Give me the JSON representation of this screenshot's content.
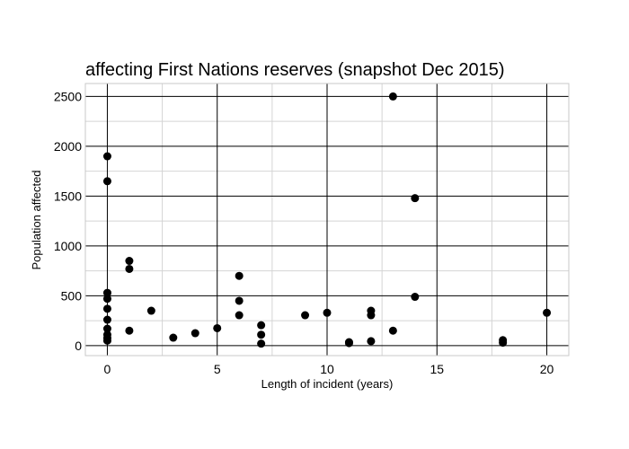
{
  "chart_data": {
    "type": "scatter",
    "title": "affecting First Nations reserves (snapshot Dec 2015)",
    "xlabel": "Length of incident (years)",
    "ylabel": "Population affected",
    "xlim": [
      -1,
      21
    ],
    "ylim": [
      -100,
      2630
    ],
    "x_ticks": [
      0,
      5,
      10,
      15,
      20
    ],
    "y_ticks": [
      0,
      500,
      1000,
      1500,
      2000,
      2500
    ],
    "grid": true,
    "marker_color": "#000000",
    "points": [
      {
        "x": 0,
        "y": 1900
      },
      {
        "x": 0,
        "y": 1650
      },
      {
        "x": 0,
        "y": 530
      },
      {
        "x": 0,
        "y": 470
      },
      {
        "x": 0,
        "y": 370
      },
      {
        "x": 0,
        "y": 260
      },
      {
        "x": 0,
        "y": 170
      },
      {
        "x": 0,
        "y": 110
      },
      {
        "x": 0,
        "y": 75
      },
      {
        "x": 0,
        "y": 50
      },
      {
        "x": 1,
        "y": 850
      },
      {
        "x": 1,
        "y": 770
      },
      {
        "x": 1,
        "y": 150
      },
      {
        "x": 2,
        "y": 350
      },
      {
        "x": 3,
        "y": 80
      },
      {
        "x": 4,
        "y": 125
      },
      {
        "x": 5,
        "y": 175
      },
      {
        "x": 6,
        "y": 700
      },
      {
        "x": 6,
        "y": 450
      },
      {
        "x": 6,
        "y": 305
      },
      {
        "x": 7,
        "y": 205
      },
      {
        "x": 7,
        "y": 110
      },
      {
        "x": 7,
        "y": 20
      },
      {
        "x": 9,
        "y": 305
      },
      {
        "x": 10,
        "y": 330
      },
      {
        "x": 11,
        "y": 35
      },
      {
        "x": 11,
        "y": 25
      },
      {
        "x": 12,
        "y": 350
      },
      {
        "x": 12,
        "y": 305
      },
      {
        "x": 12,
        "y": 45
      },
      {
        "x": 13,
        "y": 2500
      },
      {
        "x": 13,
        "y": 150
      },
      {
        "x": 14,
        "y": 1480
      },
      {
        "x": 14,
        "y": 490
      },
      {
        "x": 18,
        "y": 55
      },
      {
        "x": 18,
        "y": 30
      },
      {
        "x": 20,
        "y": 330
      }
    ]
  }
}
